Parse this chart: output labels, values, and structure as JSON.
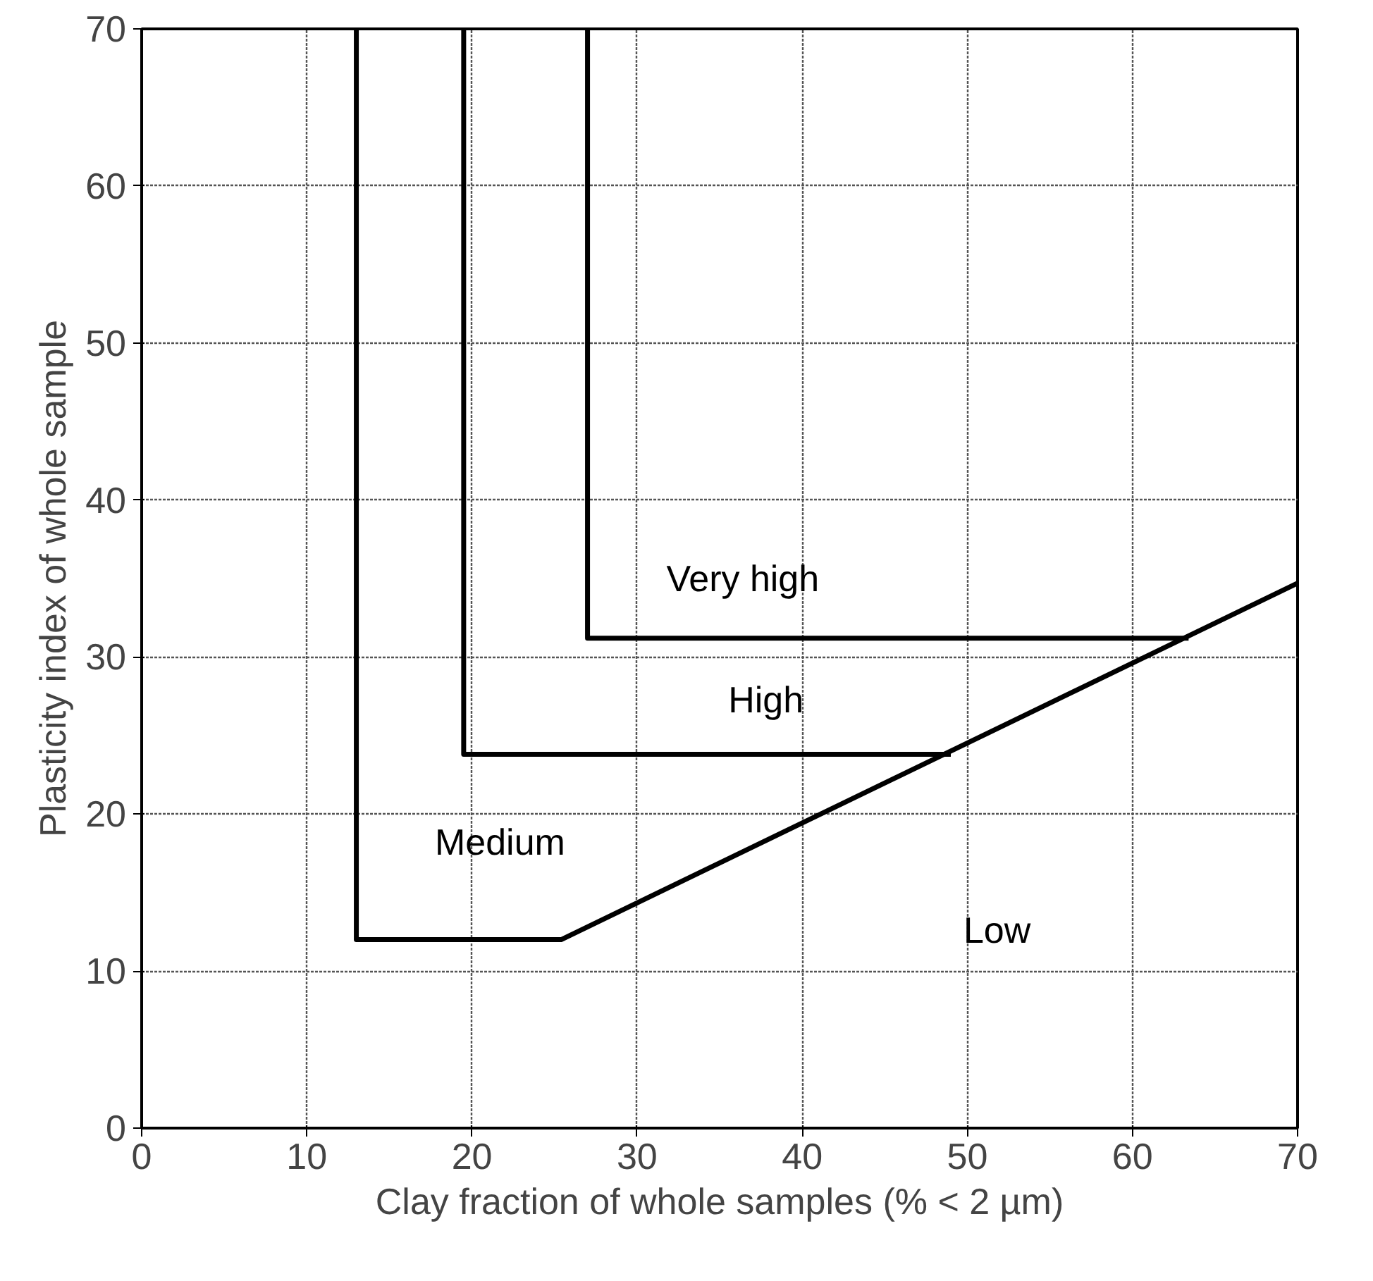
{
  "chart_data": {
    "type": "line",
    "xlabel": "Clay fraction of whole samples (% < 2 µm)",
    "ylabel": "Plasticity index of whole sample",
    "xlim": [
      0,
      70
    ],
    "ylim": [
      0,
      70
    ],
    "xticks": [
      0,
      10,
      20,
      30,
      40,
      50,
      60,
      70
    ],
    "yticks": [
      0,
      10,
      20,
      30,
      40,
      50,
      60,
      70
    ],
    "grid": true,
    "marker": "none",
    "line_style": "solid",
    "series": [
      {
        "color": "#000000",
        "x": [
          13,
          13,
          25.4,
          70
        ],
        "values": [
          70,
          12,
          12,
          34.7
        ]
      },
      {
        "color": "#000000",
        "x": [
          19.5,
          19.5,
          49
        ],
        "values": [
          70,
          23.8,
          23.8
        ]
      },
      {
        "color": "#000000",
        "x": [
          27,
          27,
          63.4
        ],
        "values": [
          70,
          31.2,
          31.2
        ]
      }
    ],
    "annotations": [
      "Very high",
      "High",
      "Medium",
      "Low"
    ]
  }
}
